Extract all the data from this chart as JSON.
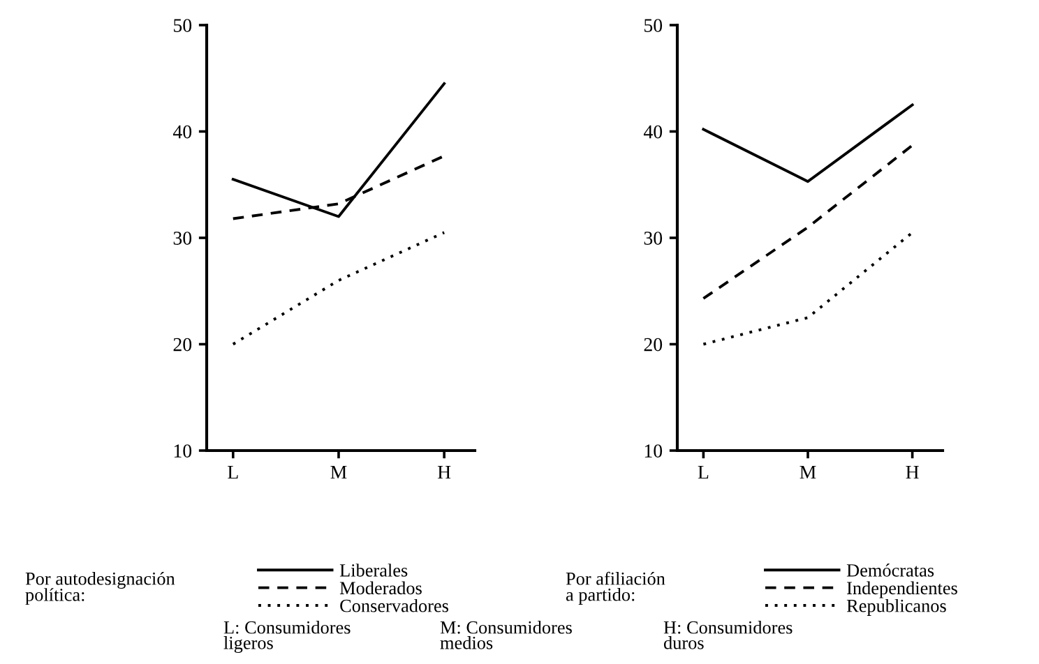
{
  "chart_data": [
    {
      "type": "line",
      "categories": [
        "L",
        "M",
        "H"
      ],
      "ylim": [
        10,
        50
      ],
      "yticks": [
        10,
        20,
        30,
        40,
        50
      ],
      "grid": false,
      "legend": "bottom",
      "legend_title": "Por autodesignación\npolítica:",
      "marker": "none",
      "series": [
        {
          "name": "Liberales",
          "color": "#000000",
          "line_style": "solid",
          "values": [
            35.5,
            32,
            44.5
          ]
        },
        {
          "name": "Moderados",
          "color": "#000000",
          "line_style": "dashed",
          "values": [
            31.8,
            33.2,
            37.7
          ]
        },
        {
          "name": "Conservadores",
          "color": "#000000",
          "line_style": "dotted",
          "values": [
            20,
            26,
            30.5
          ]
        }
      ],
      "annotations": [
        "L: Consumidores\nligeros",
        "M: Consumidores\nmedios",
        "H: Consumidores\nduros"
      ]
    },
    {
      "type": "line",
      "categories": [
        "L",
        "M",
        "H"
      ],
      "ylim": [
        10,
        50
      ],
      "yticks": [
        10,
        20,
        30,
        40,
        50
      ],
      "grid": false,
      "legend": "bottom",
      "legend_title": "Por afiliación\na partido:",
      "marker": "none",
      "series": [
        {
          "name": "Demócratas",
          "color": "#000000",
          "line_style": "solid",
          "values": [
            40.2,
            35.3,
            42.5
          ]
        },
        {
          "name": "Independientes",
          "color": "#000000",
          "line_style": "dashed",
          "values": [
            24.3,
            31,
            38.7
          ]
        },
        {
          "name": "Republicanos",
          "color": "#000000",
          "line_style": "dotted",
          "values": [
            20,
            22.5,
            30.5
          ]
        }
      ]
    }
  ]
}
